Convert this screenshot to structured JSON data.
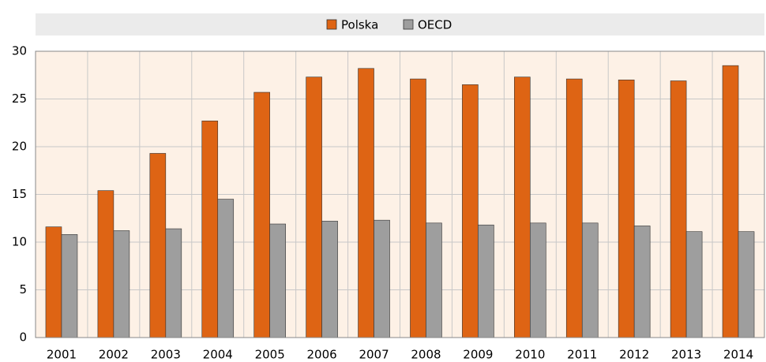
{
  "chart_data": {
    "type": "bar",
    "categories": [
      "2001",
      "2002",
      "2003",
      "2004",
      "2005",
      "2006",
      "2007",
      "2008",
      "2009",
      "2010",
      "2011",
      "2012",
      "2013",
      "2014"
    ],
    "series": [
      {
        "name": "Polska",
        "color": "#de6414",
        "values": [
          11.6,
          15.4,
          19.3,
          22.7,
          25.7,
          27.3,
          28.2,
          27.1,
          26.5,
          27.3,
          27.1,
          27.0,
          26.9,
          28.5
        ]
      },
      {
        "name": "OECD",
        "color": "#9e9e9e",
        "values": [
          10.8,
          11.2,
          11.4,
          14.5,
          11.9,
          12.2,
          12.3,
          12.0,
          11.8,
          12.0,
          12.0,
          11.7,
          11.1,
          11.1
        ]
      }
    ],
    "ylim": [
      0,
      30
    ],
    "yticks": [
      0,
      5,
      10,
      15,
      20,
      25,
      30
    ],
    "grid": true,
    "legend": "top"
  }
}
